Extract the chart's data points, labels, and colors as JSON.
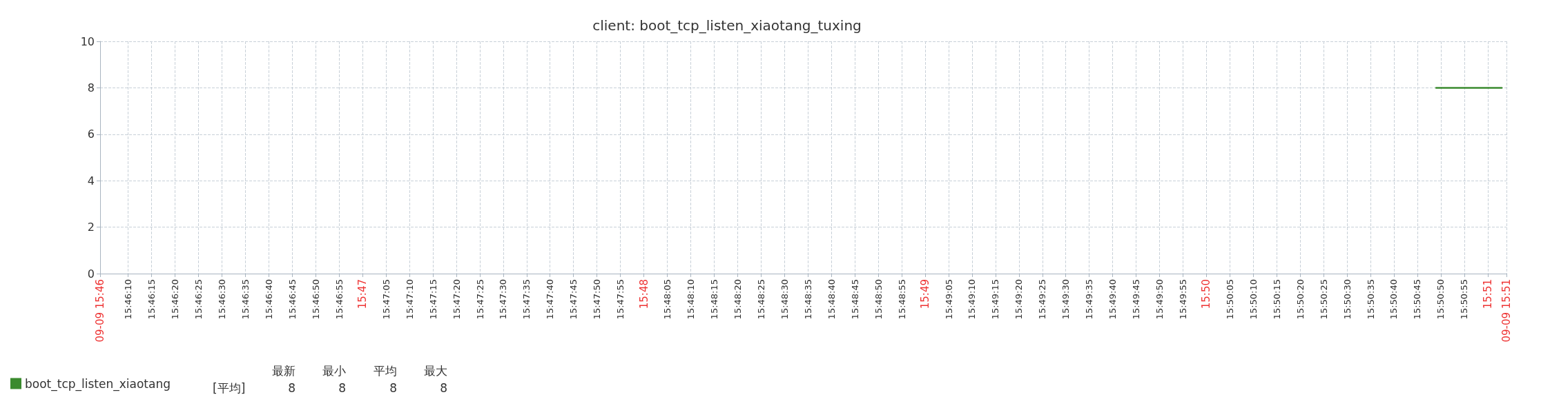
{
  "chart_data": {
    "type": "line",
    "title": "client: boot_tcp_listen_xiaotang_tuxing",
    "xlim": [
      15.76778,
      15.85111
    ],
    "ylim": [
      0,
      10
    ],
    "yticks": [
      0,
      2,
      4,
      6,
      8,
      10
    ],
    "xticks": [
      {
        "value": 15.76778,
        "label": "09-09 15:46"
      },
      {
        "value": 15.76944,
        "label": "15:46:10"
      },
      {
        "value": 15.77083,
        "label": "15:46:15"
      },
      {
        "value": 15.77222,
        "label": "15:46:20"
      },
      {
        "value": 15.77361,
        "label": "15:46:25"
      },
      {
        "value": 15.775,
        "label": "15:46:30"
      },
      {
        "value": 15.77639,
        "label": "15:46:35"
      },
      {
        "value": 15.77778,
        "label": "15:46:40"
      },
      {
        "value": 15.77917,
        "label": "15:46:45"
      },
      {
        "value": 15.78056,
        "label": "15:46:50"
      },
      {
        "value": 15.78194,
        "label": "15:46:55"
      },
      {
        "value": 15.78333,
        "label": "15:47"
      },
      {
        "value": 15.78472,
        "label": "15:47:05"
      },
      {
        "value": 15.78611,
        "label": "15:47:10"
      },
      {
        "value": 15.7875,
        "label": "15:47:15"
      },
      {
        "value": 15.78889,
        "label": "15:47:20"
      },
      {
        "value": 15.79028,
        "label": "15:47:25"
      },
      {
        "value": 15.79167,
        "label": "15:47:30"
      },
      {
        "value": 15.79306,
        "label": "15:47:35"
      },
      {
        "value": 15.79444,
        "label": "15:47:40"
      },
      {
        "value": 15.79583,
        "label": "15:47:45"
      },
      {
        "value": 15.79722,
        "label": "15:47:50"
      },
      {
        "value": 15.79861,
        "label": "15:47:55"
      },
      {
        "value": 15.8,
        "label": "15:48"
      },
      {
        "value": 15.80139,
        "label": "15:48:05"
      },
      {
        "value": 15.80278,
        "label": "15:48:10"
      },
      {
        "value": 15.80417,
        "label": "15:48:15"
      },
      {
        "value": 15.80556,
        "label": "15:48:20"
      },
      {
        "value": 15.80694,
        "label": "15:48:25"
      },
      {
        "value": 15.80833,
        "label": "15:48:30"
      },
      {
        "value": 15.80972,
        "label": "15:48:35"
      },
      {
        "value": 15.81111,
        "label": "15:48:40"
      },
      {
        "value": 15.8125,
        "label": "15:48:45"
      },
      {
        "value": 15.81389,
        "label": "15:48:50"
      },
      {
        "value": 15.81528,
        "label": "15:48:55"
      },
      {
        "value": 15.81667,
        "label": "15:49"
      },
      {
        "value": 15.81806,
        "label": "15:49:05"
      },
      {
        "value": 15.81944,
        "label": "15:49:10"
      },
      {
        "value": 15.82083,
        "label": "15:49:15"
      },
      {
        "value": 15.82222,
        "label": "15:49:20"
      },
      {
        "value": 15.82361,
        "label": "15:49:25"
      },
      {
        "value": 15.825,
        "label": "15:49:30"
      },
      {
        "value": 15.82639,
        "label": "15:49:35"
      },
      {
        "value": 15.82778,
        "label": "15:49:40"
      },
      {
        "value": 15.82917,
        "label": "15:49:45"
      },
      {
        "value": 15.83056,
        "label": "15:49:50"
      },
      {
        "value": 15.83194,
        "label": "15:49:55"
      },
      {
        "value": 15.83333,
        "label": "15:50"
      },
      {
        "value": 15.83472,
        "label": "15:50:05"
      },
      {
        "value": 15.83611,
        "label": "15:50:10"
      },
      {
        "value": 15.8375,
        "label": "15:50:15"
      },
      {
        "value": 15.83889,
        "label": "15:50:20"
      },
      {
        "value": 15.84028,
        "label": "15:50:25"
      },
      {
        "value": 15.84167,
        "label": "15:50:30"
      },
      {
        "value": 15.84306,
        "label": "15:50:35"
      },
      {
        "value": 15.84444,
        "label": "15:50:40"
      },
      {
        "value": 15.84583,
        "label": "15:50:45"
      },
      {
        "value": 15.84722,
        "label": "15:50:50"
      },
      {
        "value": 15.84861,
        "label": "15:50:55"
      },
      {
        "value": 15.85,
        "label": "15:51"
      },
      {
        "value": 15.85111,
        "label": "09-09 15:51"
      }
    ],
    "series": [
      {
        "name": "boot_tcp_listen_xiaotang",
        "color": "#3a8a2e",
        "x": [
          15.84694,
          15.85083
        ],
        "values": [
          8,
          8
        ]
      }
    ],
    "grid": true,
    "line_style": "solid",
    "legend": "bottom left",
    "annotations": [
      "[平均]",
      "最新",
      "最小",
      "平均",
      "最大",
      "8",
      "8",
      "8",
      "8"
    ]
  }
}
